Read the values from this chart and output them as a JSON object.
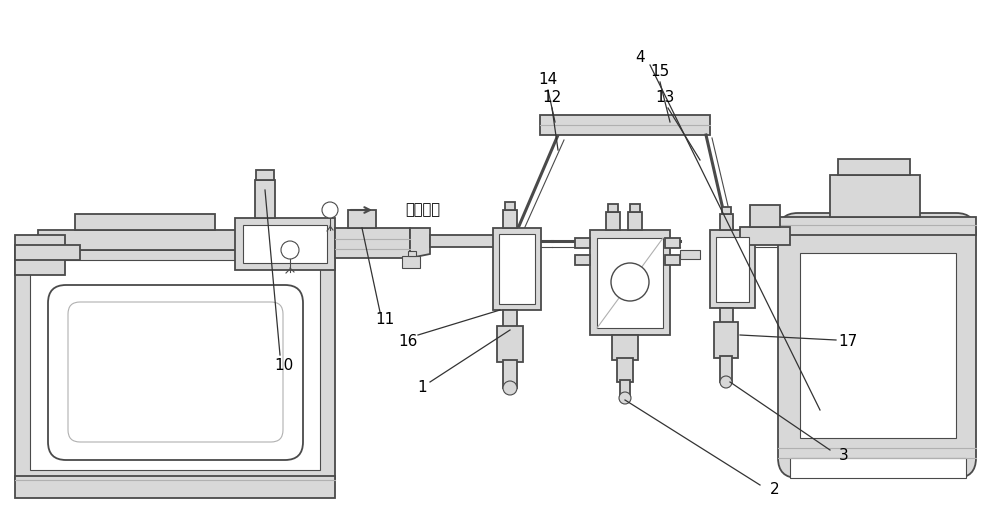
{
  "bg_color": "#ffffff",
  "lc": "#4a4a4a",
  "lg": "#d8d8d8",
  "mg": "#b0b0b0",
  "dk": "#333333",
  "wh": "#ffffff",
  "chinese_text": "液体流入"
}
